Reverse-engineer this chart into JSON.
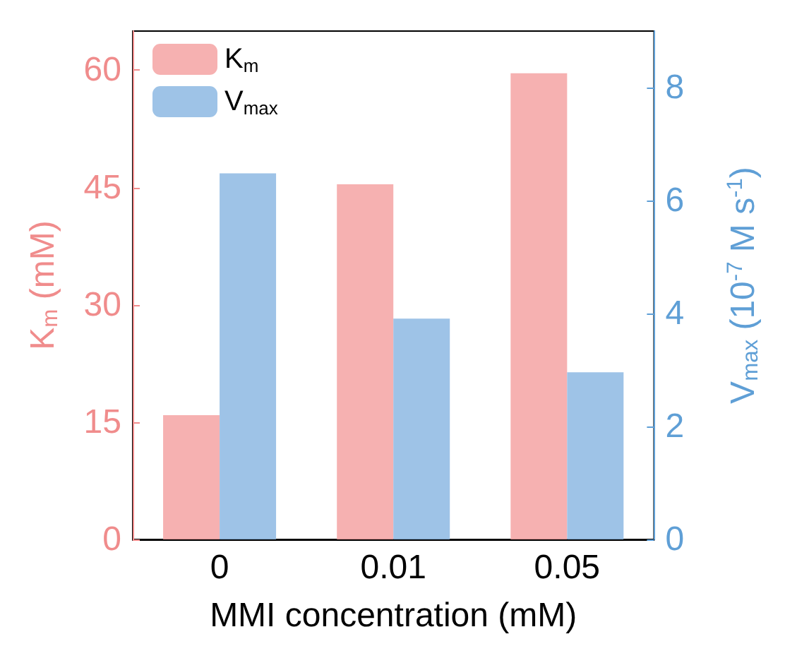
{
  "chart_data": {
    "type": "bar",
    "xlabel": "MMI concentration (mM)",
    "ylabel": "K$_{m}$ (mM)",
    "y2label": "V$_{max}$ (10$^{-7}$ M s$^{-1}$)",
    "categories": [
      "0",
      "0.01",
      "0.05"
    ],
    "series": [
      {
        "name": "K$_{m}$",
        "color": "#f5a3a3",
        "values": [
          15.9,
          45.4,
          59.6
        ]
      },
      {
        "name": "V$_{max}$",
        "color": "#8db8e3",
        "axis": "y2",
        "values": [
          6.48,
          3.91,
          2.96
        ]
      }
    ],
    "ylim": [
      0,
      65
    ],
    "yticks": [
      0,
      15,
      30,
      45,
      60
    ],
    "y2lim": [
      0,
      9
    ],
    "y2ticks": [
      0,
      2,
      4,
      6,
      8
    ],
    "grid": false,
    "legend": "top left"
  }
}
